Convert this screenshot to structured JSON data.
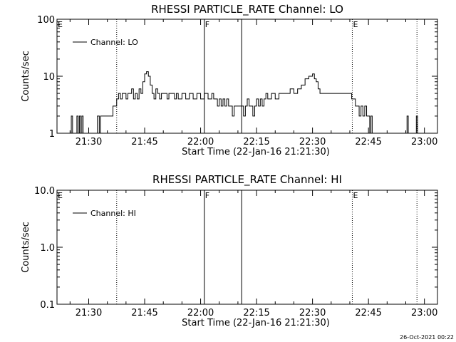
{
  "footer": {
    "timestamp": "26-Oct-2021 00:22"
  },
  "chart_data": [
    {
      "type": "line",
      "title": "RHESSI PARTICLE_RATE Channel: LO",
      "xlabel": "Start Time (22-Jan-16 21:21:30)",
      "ylabel": "Counts/sec",
      "y_scale": "log",
      "ylim": [
        1,
        100
      ],
      "xlim": [
        "21:21:30",
        "23:03:30"
      ],
      "x_ticks": [
        "21:30",
        "21:45",
        "22:00",
        "22:15",
        "22:30",
        "22:45",
        "23:00"
      ],
      "y_ticks": [
        "1",
        "10",
        "100"
      ],
      "legend": {
        "position": "top-left",
        "entries": [
          "Channel: LO"
        ]
      },
      "markers": [
        {
          "time": "21:37:30",
          "label": "",
          "style": "dotted"
        },
        {
          "time": "22:01:00",
          "label": "F",
          "style": "solid"
        },
        {
          "time": "22:11:00",
          "label": "",
          "style": "solid"
        },
        {
          "time": "22:40:40",
          "label": "E",
          "style": "dotted"
        },
        {
          "time": "22:58:00",
          "label": "",
          "style": "dotted"
        }
      ],
      "edge_label": "E",
      "series": [
        {
          "name": "Channel: LO",
          "points": [
            [
              "21:25:00",
              1
            ],
            [
              "21:25:20",
              2
            ],
            [
              "21:25:40",
              1
            ],
            [
              "21:26:30",
              1
            ],
            [
              "21:26:50",
              2
            ],
            [
              "21:27:10",
              1
            ],
            [
              "21:27:30",
              2
            ],
            [
              "21:27:50",
              1
            ],
            [
              "21:28:10",
              2
            ],
            [
              "21:28:30",
              1
            ],
            [
              "21:29:30",
              1
            ],
            [
              "21:30:20",
              1
            ],
            [
              "21:31:00",
              1
            ],
            [
              "21:31:40",
              1
            ],
            [
              "21:32:20",
              2
            ],
            [
              "21:32:50",
              1
            ],
            [
              "21:33:10",
              2
            ],
            [
              "21:36:00",
              2
            ],
            [
              "21:36:30",
              3
            ],
            [
              "21:37:00",
              3
            ],
            [
              "21:37:30",
              4
            ],
            [
              "21:38:00",
              5
            ],
            [
              "21:38:30",
              4
            ],
            [
              "21:39:00",
              5
            ],
            [
              "21:39:30",
              5
            ],
            [
              "21:40:00",
              4
            ],
            [
              "21:40:30",
              5
            ],
            [
              "21:41:00",
              5
            ],
            [
              "21:41:30",
              6
            ],
            [
              "21:42:00",
              4
            ],
            [
              "21:42:30",
              5
            ],
            [
              "21:43:00",
              4
            ],
            [
              "21:43:30",
              6
            ],
            [
              "21:44:00",
              5
            ],
            [
              "21:44:30",
              8
            ],
            [
              "21:45:00",
              11
            ],
            [
              "21:45:30",
              12
            ],
            [
              "21:46:00",
              10
            ],
            [
              "21:46:30",
              7
            ],
            [
              "21:47:00",
              5
            ],
            [
              "21:47:30",
              4
            ],
            [
              "21:48:00",
              6
            ],
            [
              "21:48:30",
              5
            ],
            [
              "21:49:00",
              4
            ],
            [
              "21:49:30",
              5
            ],
            [
              "21:50:00",
              5
            ],
            [
              "21:51:00",
              4
            ],
            [
              "21:51:30",
              5
            ],
            [
              "21:52:00",
              5
            ],
            [
              "21:53:00",
              4
            ],
            [
              "21:53:30",
              5
            ],
            [
              "21:54:00",
              4
            ],
            [
              "21:55:00",
              5
            ],
            [
              "21:56:00",
              4
            ],
            [
              "21:57:00",
              5
            ],
            [
              "21:58:00",
              4
            ],
            [
              "21:59:00",
              5
            ],
            [
              "22:00:00",
              4
            ],
            [
              "22:01:00",
              5
            ],
            [
              "22:02:00",
              4
            ],
            [
              "22:03:00",
              5
            ],
            [
              "22:03:30",
              4
            ],
            [
              "22:04:00",
              4
            ],
            [
              "22:04:30",
              3
            ],
            [
              "22:05:00",
              4
            ],
            [
              "22:05:30",
              3
            ],
            [
              "22:06:00",
              4
            ],
            [
              "22:06:30",
              3
            ],
            [
              "22:07:00",
              4
            ],
            [
              "22:07:30",
              3
            ],
            [
              "22:08:00",
              3
            ],
            [
              "22:08:30",
              2
            ],
            [
              "22:09:00",
              3
            ],
            [
              "22:10:00",
              3
            ],
            [
              "22:11:00",
              3
            ],
            [
              "22:11:30",
              2
            ],
            [
              "22:12:00",
              3
            ],
            [
              "22:12:30",
              4
            ],
            [
              "22:13:00",
              3
            ],
            [
              "22:13:30",
              3
            ],
            [
              "22:14:00",
              2
            ],
            [
              "22:14:30",
              3
            ],
            [
              "22:15:00",
              4
            ],
            [
              "22:15:30",
              3
            ],
            [
              "22:16:00",
              4
            ],
            [
              "22:16:30",
              3
            ],
            [
              "22:17:00",
              4
            ],
            [
              "22:17:30",
              5
            ],
            [
              "22:18:00",
              4
            ],
            [
              "22:18:30",
              4
            ],
            [
              "22:19:00",
              5
            ],
            [
              "22:20:00",
              4
            ],
            [
              "22:21:00",
              5
            ],
            [
              "22:22:00",
              5
            ],
            [
              "22:23:00",
              5
            ],
            [
              "22:24:00",
              6
            ],
            [
              "22:25:00",
              5
            ],
            [
              "22:26:00",
              6
            ],
            [
              "22:27:00",
              7
            ],
            [
              "22:28:00",
              9
            ],
            [
              "22:29:00",
              10
            ],
            [
              "22:30:00",
              11
            ],
            [
              "22:30:30",
              9
            ],
            [
              "22:31:00",
              8
            ],
            [
              "22:31:30",
              6
            ],
            [
              "22:32:00",
              5
            ],
            [
              "22:33:00",
              5
            ],
            [
              "22:34:00",
              5
            ],
            [
              "22:35:00",
              5
            ],
            [
              "22:36:00",
              5
            ],
            [
              "22:37:00",
              5
            ],
            [
              "22:38:00",
              5
            ],
            [
              "22:39:00",
              5
            ],
            [
              "22:40:00",
              5
            ],
            [
              "22:40:30",
              4
            ],
            [
              "22:41:00",
              4
            ],
            [
              "22:41:30",
              3
            ],
            [
              "22:42:00",
              3
            ],
            [
              "22:42:30",
              2
            ],
            [
              "22:43:00",
              3
            ],
            [
              "22:43:30",
              2
            ],
            [
              "22:44:00",
              3
            ],
            [
              "22:44:30",
              2
            ],
            [
              "22:45:00",
              2
            ],
            [
              "22:45:20",
              1
            ],
            [
              "22:45:40",
              2
            ],
            [
              "22:46:00",
              1
            ],
            [
              "22:47:00",
              1
            ],
            [
              "22:48:00",
              1
            ],
            [
              "22:55:00",
              1
            ],
            [
              "22:55:20",
              2
            ],
            [
              "22:55:40",
              1
            ],
            [
              "22:57:30",
              1
            ],
            [
              "22:57:50",
              2
            ],
            [
              "22:58:10",
              1
            ]
          ]
        }
      ]
    },
    {
      "type": "line",
      "title": "RHESSI PARTICLE_RATE Channel: HI",
      "xlabel": "Start Time (22-Jan-16 21:21:30)",
      "ylabel": "Counts/sec",
      "y_scale": "log",
      "ylim": [
        0.1,
        10
      ],
      "xlim": [
        "21:21:30",
        "23:03:30"
      ],
      "x_ticks": [
        "21:30",
        "21:45",
        "22:00",
        "22:15",
        "22:30",
        "22:45",
        "23:00"
      ],
      "y_ticks": [
        "0.1",
        "1.0",
        "10.0"
      ],
      "legend": {
        "position": "top-left",
        "entries": [
          "Channel: HI"
        ]
      },
      "markers": [
        {
          "time": "21:37:30",
          "label": "",
          "style": "dotted"
        },
        {
          "time": "22:01:00",
          "label": "F",
          "style": "solid"
        },
        {
          "time": "22:11:00",
          "label": "",
          "style": "solid"
        },
        {
          "time": "22:40:40",
          "label": "E",
          "style": "dotted"
        },
        {
          "time": "22:58:00",
          "label": "",
          "style": "dotted"
        }
      ],
      "edge_label": "E",
      "series": [
        {
          "name": "Channel: HI",
          "points": []
        }
      ]
    }
  ]
}
